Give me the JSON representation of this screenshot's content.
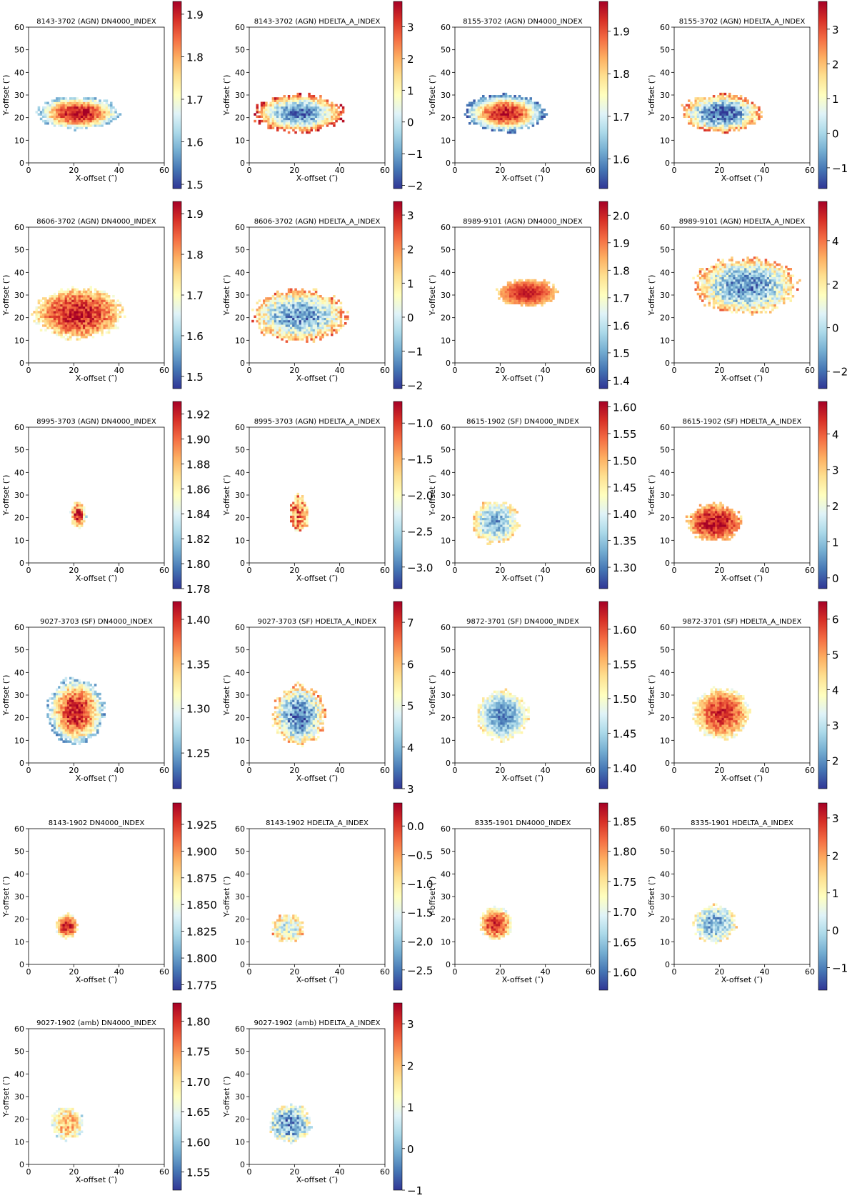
{
  "figure": {
    "description_free": true,
    "axis_common": {
      "xlabel": "X-offset (″)",
      "ylabel": "Y-offset (″)",
      "xlim": [
        0,
        60
      ],
      "ylim": [
        0,
        60
      ],
      "xticks": [
        "0",
        "20",
        "40",
        "60"
      ],
      "yticks": [
        "0",
        "10",
        "20",
        "30",
        "40",
        "50",
        "60"
      ]
    },
    "colormap": [
      "#313695",
      "#4575b4",
      "#74add1",
      "#abd9e9",
      "#e0f3f8",
      "#ffffbf",
      "#fee090",
      "#fdae61",
      "#f46d43",
      "#d73027",
      "#a50026"
    ]
  },
  "chart_data": [
    {
      "type": "heatmap",
      "title": "8143-3702 (AGN) DN4000_INDEX",
      "xlabel": "X-offset (″)",
      "ylabel": "Y-offset (″)",
      "xlim": [
        0,
        60
      ],
      "ylim": [
        0,
        60
      ],
      "colorbar": {
        "range": [
          1.49,
          1.93
        ],
        "ticks": [
          "1.5",
          "1.6",
          "1.7",
          "1.8",
          "1.9"
        ],
        "tick_values": [
          1.5,
          1.6,
          1.7,
          1.8,
          1.9
        ]
      },
      "blob": {
        "center": [
          22,
          22
        ],
        "radius": [
          17,
          7
        ],
        "center_value": 1.92,
        "edge_value": 1.6,
        "noise": 0.05
      }
    },
    {
      "type": "heatmap",
      "title": "8143-3702 (AGN) HDELTA_A_INDEX",
      "xlabel": "X-offset (″)",
      "ylabel": "Y-offset (″)",
      "xlim": [
        0,
        60
      ],
      "ylim": [
        0,
        60
      ],
      "colorbar": {
        "range": [
          -2.1,
          3.8
        ],
        "ticks": [
          "−2",
          "−1",
          "0",
          "1",
          "2",
          "3"
        ],
        "tick_values": [
          -2,
          -1,
          0,
          1,
          2,
          3
        ]
      },
      "blob": {
        "center": [
          22,
          22
        ],
        "radius": [
          19,
          8
        ],
        "center_value": -1.5,
        "edge_value": 3.0,
        "noise": 0.8
      }
    },
    {
      "type": "heatmap",
      "title": "8155-3702 (AGN) DN4000_INDEX",
      "xlabel": "X-offset (″)",
      "ylabel": "Y-offset (″)",
      "xlim": [
        0,
        60
      ],
      "ylim": [
        0,
        60
      ],
      "colorbar": {
        "range": [
          1.53,
          1.97
        ],
        "ticks": [
          "1.6",
          "1.7",
          "1.8",
          "1.9"
        ],
        "tick_values": [
          1.6,
          1.7,
          1.8,
          1.9
        ]
      },
      "blob": {
        "center": [
          22,
          22
        ],
        "radius": [
          17,
          8
        ],
        "center_value": 1.95,
        "edge_value": 1.58,
        "noise": 0.05
      }
    },
    {
      "type": "heatmap",
      "title": "8155-3702 (AGN) HDELTA_A_INDEX",
      "xlabel": "X-offset (″)",
      "ylabel": "Y-offset (″)",
      "xlim": [
        0,
        60
      ],
      "ylim": [
        0,
        60
      ],
      "colorbar": {
        "range": [
          -1.6,
          3.8
        ],
        "ticks": [
          "−1",
          "0",
          "1",
          "2",
          "3"
        ],
        "tick_values": [
          -1,
          0,
          1,
          2,
          3
        ]
      },
      "blob": {
        "center": [
          21,
          22
        ],
        "radius": [
          17,
          8
        ],
        "center_value": -1.3,
        "edge_value": 2.5,
        "noise": 0.9
      }
    },
    {
      "type": "heatmap",
      "title": "8606-3702 (AGN) DN4000_INDEX",
      "xlabel": "X-offset (″)",
      "ylabel": "Y-offset (″)",
      "xlim": [
        0,
        60
      ],
      "ylim": [
        0,
        60
      ],
      "colorbar": {
        "range": [
          1.47,
          1.93
        ],
        "ticks": [
          "1.5",
          "1.6",
          "1.7",
          "1.8",
          "1.9"
        ],
        "tick_values": [
          1.5,
          1.6,
          1.7,
          1.8,
          1.9
        ]
      },
      "blob": {
        "center": [
          22,
          22
        ],
        "radius": [
          19,
          11
        ],
        "center_value": 1.9,
        "edge_value": 1.72,
        "noise": 0.06
      }
    },
    {
      "type": "heatmap",
      "title": "8606-3702 (AGN) HDELTA_A_INDEX",
      "xlabel": "X-offset (″)",
      "ylabel": "Y-offset (″)",
      "xlim": [
        0,
        60
      ],
      "ylim": [
        0,
        60
      ],
      "colorbar": {
        "range": [
          -2.1,
          3.4
        ],
        "ticks": [
          "−2",
          "−1",
          "0",
          "1",
          "2",
          "3"
        ],
        "tick_values": [
          -2,
          -1,
          0,
          1,
          2,
          3
        ]
      },
      "blob": {
        "center": [
          22,
          21
        ],
        "radius": [
          20,
          11
        ],
        "center_value": -1.2,
        "edge_value": 1.8,
        "noise": 1.0
      }
    },
    {
      "type": "heatmap",
      "title": "8989-9101 (AGN) DN4000_INDEX",
      "xlabel": "X-offset (″)",
      "ylabel": "Y-offset (″)",
      "xlim": [
        0,
        60
      ],
      "ylim": [
        0,
        60
      ],
      "colorbar": {
        "range": [
          1.37,
          2.05
        ],
        "ticks": [
          "1.4",
          "1.5",
          "1.6",
          "1.7",
          "1.8",
          "1.9",
          "2.0"
        ],
        "tick_values": [
          1.4,
          1.5,
          1.6,
          1.7,
          1.8,
          1.9,
          2.0
        ]
      },
      "blob": {
        "center": [
          32,
          31
        ],
        "radius": [
          13,
          6
        ],
        "center_value": 2.0,
        "edge_value": 1.8,
        "noise": 0.04
      }
    },
    {
      "type": "heatmap",
      "title": "8989-9101 (AGN) HDELTA_A_INDEX",
      "xlabel": "X-offset (″)",
      "ylabel": "Y-offset (″)",
      "xlim": [
        0,
        60
      ],
      "ylim": [
        0,
        60
      ],
      "colorbar": {
        "range": [
          -2.8,
          5.8
        ],
        "ticks": [
          "−2",
          "0",
          "2",
          "4"
        ],
        "tick_values": [
          -2,
          0,
          2,
          4
        ]
      },
      "blob": {
        "center": [
          32,
          34
        ],
        "radius": [
          22,
          12
        ],
        "center_value": -1.5,
        "edge_value": 3.0,
        "noise": 1.5
      }
    },
    {
      "type": "heatmap",
      "title": "8995-3703 (AGN) DN4000_INDEX",
      "xlabel": "X-offset (″)",
      "ylabel": "Y-offset (″)",
      "xlim": [
        0,
        60
      ],
      "ylim": [
        0,
        60
      ],
      "colorbar": {
        "range": [
          1.78,
          1.93
        ],
        "ticks": [
          "1.78",
          "1.80",
          "1.82",
          "1.84",
          "1.86",
          "1.88",
          "1.90",
          "1.92"
        ],
        "tick_values": [
          1.78,
          1.8,
          1.82,
          1.84,
          1.86,
          1.88,
          1.9,
          1.92
        ]
      },
      "blob": {
        "center": [
          22,
          21
        ],
        "radius": [
          3.5,
          6
        ],
        "center_value": 1.92,
        "edge_value": 1.84,
        "noise": 0.03
      }
    },
    {
      "type": "heatmap",
      "title": "8995-3703 (AGN) HDELTA_A_INDEX",
      "xlabel": "X-offset (″)",
      "ylabel": "Y-offset (″)",
      "xlim": [
        0,
        60
      ],
      "ylim": [
        0,
        60
      ],
      "colorbar": {
        "range": [
          -3.3,
          -0.7
        ],
        "ticks": [
          "−3.0",
          "−2.5",
          "−2.0",
          "−1.5",
          "−1.0"
        ],
        "tick_values": [
          -3.0,
          -2.5,
          -2.0,
          -1.5,
          -1.0
        ]
      },
      "blob": {
        "center": [
          22,
          22
        ],
        "radius": [
          4,
          8
        ],
        "center_value": -1.3,
        "edge_value": -1.6,
        "noise": 0.6
      }
    },
    {
      "type": "heatmap",
      "title": "8615-1902 (SF) DN4000_INDEX",
      "xlabel": "X-offset (″)",
      "ylabel": "Y-offset (″)",
      "xlim": [
        0,
        60
      ],
      "ylim": [
        0,
        60
      ],
      "colorbar": {
        "range": [
          1.26,
          1.61
        ],
        "ticks": [
          "1.30",
          "1.35",
          "1.40",
          "1.45",
          "1.50",
          "1.55",
          "1.60"
        ],
        "tick_values": [
          1.3,
          1.35,
          1.4,
          1.45,
          1.5,
          1.55,
          1.6
        ]
      },
      "blob": {
        "center": [
          18,
          18
        ],
        "radius": [
          10,
          9
        ],
        "center_value": 1.33,
        "edge_value": 1.47,
        "noise": 0.05
      }
    },
    {
      "type": "heatmap",
      "title": "8615-1902 (SF) HDELTA_A_INDEX",
      "xlabel": "X-offset (″)",
      "ylabel": "Y-offset (″)",
      "xlim": [
        0,
        60
      ],
      "ylim": [
        0,
        60
      ],
      "colorbar": {
        "range": [
          -0.3,
          4.9
        ],
        "ticks": [
          "0",
          "1",
          "2",
          "3",
          "4"
        ],
        "tick_values": [
          0,
          1,
          2,
          3,
          4
        ]
      },
      "blob": {
        "center": [
          18,
          18
        ],
        "radius": [
          12,
          8
        ],
        "center_value": 4.7,
        "edge_value": 3.0,
        "noise": 0.6
      }
    },
    {
      "type": "heatmap",
      "title": "9027-3703 (SF) DN4000_INDEX",
      "xlabel": "X-offset (″)",
      "ylabel": "Y-offset (″)",
      "xlim": [
        0,
        60
      ],
      "ylim": [
        0,
        60
      ],
      "colorbar": {
        "range": [
          1.21,
          1.42
        ],
        "ticks": [
          "1.25",
          "1.30",
          "1.35",
          "1.40"
        ],
        "tick_values": [
          1.25,
          1.3,
          1.35,
          1.4
        ]
      },
      "blob": {
        "center": [
          21,
          23
        ],
        "radius": [
          12,
          14
        ],
        "center_value": 1.41,
        "edge_value": 1.26,
        "noise": 0.03
      }
    },
    {
      "type": "heatmap",
      "title": "9027-3703 (SF) HDELTA_A_INDEX",
      "xlabel": "X-offset (″)",
      "ylabel": "Y-offset (″)",
      "xlim": [
        0,
        60
      ],
      "ylim": [
        0,
        60
      ],
      "colorbar": {
        "range": [
          3.0,
          7.5
        ],
        "ticks": [
          "3",
          "4",
          "5",
          "6",
          "7"
        ],
        "tick_values": [
          3,
          4,
          5,
          6,
          7
        ]
      },
      "blob": {
        "center": [
          22,
          21
        ],
        "radius": [
          11,
          13
        ],
        "center_value": 3.5,
        "edge_value": 6.0,
        "noise": 0.8
      }
    },
    {
      "type": "heatmap",
      "title": "9872-3701 (SF) DN4000_INDEX",
      "xlabel": "X-offset (″)",
      "ylabel": "Y-offset (″)",
      "xlim": [
        0,
        60
      ],
      "ylim": [
        0,
        60
      ],
      "colorbar": {
        "range": [
          1.37,
          1.64
        ],
        "ticks": [
          "1.40",
          "1.45",
          "1.50",
          "1.55",
          "1.60"
        ],
        "tick_values": [
          1.4,
          1.45,
          1.5,
          1.55,
          1.6
        ]
      },
      "blob": {
        "center": [
          21,
          21
        ],
        "radius": [
          11,
          11
        ],
        "center_value": 1.41,
        "edge_value": 1.52,
        "noise": 0.03
      }
    },
    {
      "type": "heatmap",
      "title": "9872-3701 (SF) HDELTA_A_INDEX",
      "xlabel": "X-offset (″)",
      "ylabel": "Y-offset (″)",
      "xlim": [
        0,
        60
      ],
      "ylim": [
        0,
        60
      ],
      "colorbar": {
        "range": [
          1.2,
          6.5
        ],
        "ticks": [
          "2",
          "3",
          "4",
          "5",
          "6"
        ],
        "tick_values": [
          2,
          3,
          4,
          5,
          6
        ]
      },
      "blob": {
        "center": [
          21,
          22
        ],
        "radius": [
          12,
          11
        ],
        "center_value": 6.0,
        "edge_value": 3.8,
        "noise": 0.6
      }
    },
    {
      "type": "heatmap",
      "title": "8143-1902 DN4000_INDEX",
      "xlabel": "X-offset (″)",
      "ylabel": "Y-offset (″)",
      "xlim": [
        0,
        60
      ],
      "ylim": [
        0,
        60
      ],
      "colorbar": {
        "range": [
          1.77,
          1.945
        ],
        "ticks": [
          "1.775",
          "1.800",
          "1.825",
          "1.850",
          "1.875",
          "1.900",
          "1.925"
        ],
        "tick_values": [
          1.775,
          1.8,
          1.825,
          1.85,
          1.875,
          1.9,
          1.925
        ]
      },
      "blob": {
        "center": [
          17,
          17
        ],
        "radius": [
          5,
          5
        ],
        "center_value": 1.935,
        "edge_value": 1.86,
        "noise": 0.02
      }
    },
    {
      "type": "heatmap",
      "title": "8143-1902 HDELTA_A_INDEX",
      "xlabel": "X-offset (″)",
      "ylabel": "Y-offset (″)",
      "xlim": [
        0,
        60
      ],
      "ylim": [
        0,
        60
      ],
      "colorbar": {
        "range": [
          -2.85,
          0.4
        ],
        "ticks": [
          "−2.5",
          "−2.0",
          "−1.5",
          "−1.0",
          "−0.5",
          "0.0"
        ],
        "tick_values": [
          -2.5,
          -2.0,
          -1.5,
          -1.0,
          -0.5,
          0.0
        ]
      },
      "blob": {
        "center": [
          17,
          16
        ],
        "radius": [
          7,
          6
        ],
        "center_value": -1.7,
        "edge_value": -0.8,
        "noise": 0.6
      }
    },
    {
      "type": "heatmap",
      "title": "8335-1901 DN4000_INDEX",
      "xlabel": "X-offset (″)",
      "ylabel": "Y-offset (″)",
      "xlim": [
        0,
        60
      ],
      "ylim": [
        0,
        60
      ],
      "colorbar": {
        "range": [
          1.57,
          1.88
        ],
        "ticks": [
          "1.60",
          "1.65",
          "1.70",
          "1.75",
          "1.80",
          "1.85"
        ],
        "tick_values": [
          1.6,
          1.65,
          1.7,
          1.75,
          1.8,
          1.85
        ]
      },
      "blob": {
        "center": [
          18,
          18
        ],
        "radius": [
          7,
          7
        ],
        "center_value": 1.86,
        "edge_value": 1.72,
        "noise": 0.04
      }
    },
    {
      "type": "heatmap",
      "title": "8335-1901 HDELTA_A_INDEX",
      "xlabel": "X-offset (″)",
      "ylabel": "Y-offset (″)",
      "xlim": [
        0,
        60
      ],
      "ylim": [
        0,
        60
      ],
      "colorbar": {
        "range": [
          -1.6,
          3.4
        ],
        "ticks": [
          "−1",
          "0",
          "1",
          "2",
          "3"
        ],
        "tick_values": [
          -1,
          0,
          1,
          2,
          3
        ]
      },
      "blob": {
        "center": [
          18,
          18
        ],
        "radius": [
          9,
          8
        ],
        "center_value": -0.6,
        "edge_value": 1.0,
        "noise": 0.8
      }
    },
    {
      "type": "heatmap",
      "title": "9027-1902 (amb) DN4000_INDEX",
      "xlabel": "X-offset (″)",
      "ylabel": "Y-offset (″)",
      "xlim": [
        0,
        60
      ],
      "ylim": [
        0,
        60
      ],
      "colorbar": {
        "range": [
          1.52,
          1.83
        ],
        "ticks": [
          "1.55",
          "1.60",
          "1.65",
          "1.70",
          "1.75",
          "1.80"
        ],
        "tick_values": [
          1.55,
          1.6,
          1.65,
          1.7,
          1.75,
          1.8
        ]
      },
      "blob": {
        "center": [
          17,
          18
        ],
        "radius": [
          7,
          7
        ],
        "center_value": 1.73,
        "edge_value": 1.65,
        "noise": 0.05
      }
    },
    {
      "type": "heatmap",
      "title": "9027-1902 (amb) HDELTA_A_INDEX",
      "xlabel": "X-offset (″)",
      "ylabel": "Y-offset (″)",
      "xlim": [
        0,
        60
      ],
      "ylim": [
        0,
        60
      ],
      "colorbar": {
        "range": [
          -1.0,
          3.5
        ],
        "ticks": [
          "−1",
          "0",
          "1",
          "2",
          "3"
        ],
        "tick_values": [
          -1,
          0,
          1,
          2,
          3
        ]
      },
      "blob": {
        "center": [
          18,
          18
        ],
        "radius": [
          9,
          8
        ],
        "center_value": -0.3,
        "edge_value": 1.2,
        "noise": 0.9
      }
    }
  ]
}
